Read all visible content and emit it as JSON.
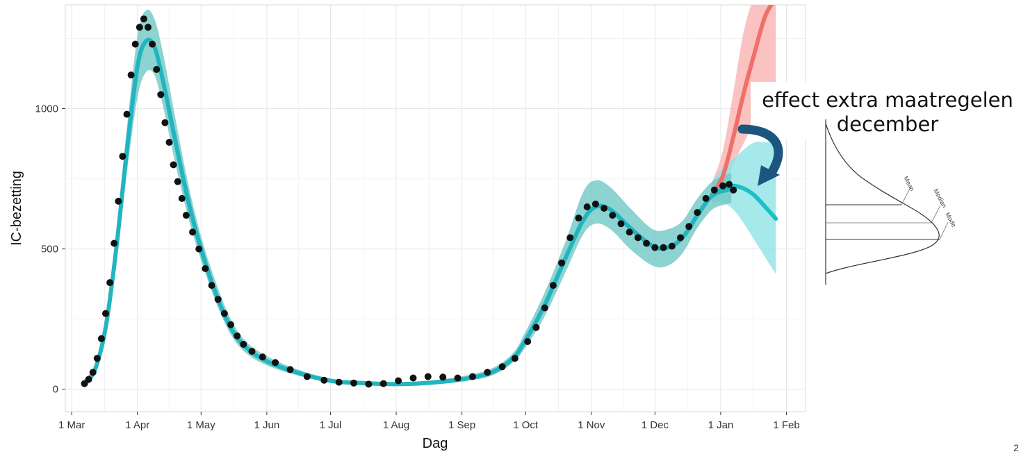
{
  "chart_data": {
    "type": "line",
    "title": "",
    "xlabel": "Dag",
    "ylabel": "IC-bezetting",
    "x_ticks": [
      "1 Mar",
      "1 Apr",
      "1 May",
      "1 Jun",
      "1 Jul",
      "1 Aug",
      "1 Sep",
      "1 Oct",
      "1 Nov",
      "1 Dec",
      "1 Jan",
      "1 Feb"
    ],
    "y_ticks": [
      0,
      500,
      1000
    ],
    "xlim": [
      "2020-02-27",
      "2021-02-10"
    ],
    "ylim": [
      -80,
      1370
    ],
    "grid": true,
    "legend": "none",
    "colors": {
      "observed": "#111111",
      "model": "#22b5bf",
      "model_band": "#6fc8c6",
      "scenario_without": "#f06f6a",
      "scenario_without_band": "#f9b9b6",
      "scenario_with": "#1fbfc8",
      "scenario_with_band": "#8fe3e6",
      "arrow": "#1b567f"
    },
    "series": [
      {
        "role": "model",
        "x": [
          "2020-03-07",
          "2020-03-12",
          "2020-03-17",
          "2020-03-22",
          "2020-03-27",
          "2020-04-01",
          "2020-04-05",
          "2020-04-09",
          "2020-04-13",
          "2020-04-19",
          "2020-04-25",
          "2020-05-01",
          "2020-05-08",
          "2020-05-15",
          "2020-05-22",
          "2020-06-01",
          "2020-06-15",
          "2020-07-01",
          "2020-07-15",
          "2020-08-01",
          "2020-08-15",
          "2020-09-01",
          "2020-09-15",
          "2020-09-25",
          "2020-10-01",
          "2020-10-10",
          "2020-10-20",
          "2020-10-28",
          "2020-11-03",
          "2020-11-10",
          "2020-11-20",
          "2020-11-30",
          "2020-12-07",
          "2020-12-14",
          "2020-12-21",
          "2020-12-28",
          "2021-01-04",
          "2021-01-06"
        ],
        "y": [
          20,
          70,
          220,
          500,
          850,
          1150,
          1240,
          1220,
          1100,
          880,
          670,
          500,
          340,
          220,
          150,
          100,
          60,
          30,
          22,
          18,
          22,
          35,
          60,
          110,
          175,
          300,
          470,
          600,
          650,
          640,
          570,
          510,
          505,
          540,
          620,
          690,
          710,
          715
        ],
        "lower": [
          5,
          55,
          190,
          440,
          770,
          1040,
          1130,
          1120,
          1010,
          800,
          610,
          460,
          310,
          195,
          130,
          85,
          50,
          24,
          15,
          12,
          17,
          28,
          48,
          95,
          150,
          260,
          420,
          550,
          590,
          570,
          495,
          440,
          440,
          485,
          575,
          640,
          660,
          665
        ],
        "upper": [
          35,
          90,
          260,
          560,
          930,
          1260,
          1350,
          1320,
          1200,
          960,
          730,
          545,
          380,
          250,
          172,
          118,
          72,
          38,
          30,
          26,
          30,
          46,
          74,
          128,
          205,
          345,
          530,
          700,
          745,
          720,
          640,
          570,
          570,
          600,
          680,
          740,
          765,
          770
        ]
      },
      {
        "role": "scenario_without",
        "x": [
          "2020-12-28",
          "2021-01-02",
          "2021-01-07",
          "2021-01-12",
          "2021-01-17",
          "2021-01-22",
          "2021-01-27"
        ],
        "y": [
          695,
          760,
          900,
          1060,
          1200,
          1330,
          1430
        ],
        "lower": [
          665,
          710,
          800,
          880,
          950,
          1000,
          1040
        ],
        "upper": [
          740,
          850,
          1060,
          1280,
          1450,
          1600,
          1700
        ]
      },
      {
        "role": "scenario_with",
        "x": [
          "2020-12-28",
          "2021-01-02",
          "2021-01-07",
          "2021-01-12",
          "2021-01-17",
          "2021-01-22",
          "2021-01-27"
        ],
        "y": [
          695,
          715,
          725,
          715,
          690,
          650,
          608
        ],
        "lower": [
          665,
          665,
          640,
          590,
          530,
          470,
          410
        ],
        "upper": [
          740,
          790,
          820,
          855,
          880,
          880,
          880
        ]
      },
      {
        "role": "observed",
        "x": [
          "2020-03-07",
          "2020-03-09",
          "2020-03-11",
          "2020-03-13",
          "2020-03-15",
          "2020-03-17",
          "2020-03-19",
          "2020-03-21",
          "2020-03-23",
          "2020-03-25",
          "2020-03-27",
          "2020-03-29",
          "2020-03-31",
          "2020-04-02",
          "2020-04-04",
          "2020-04-06",
          "2020-04-08",
          "2020-04-10",
          "2020-04-12",
          "2020-04-14",
          "2020-04-16",
          "2020-04-18",
          "2020-04-20",
          "2020-04-22",
          "2020-04-24",
          "2020-04-27",
          "2020-04-30",
          "2020-05-03",
          "2020-05-06",
          "2020-05-09",
          "2020-05-12",
          "2020-05-15",
          "2020-05-18",
          "2020-05-21",
          "2020-05-25",
          "2020-05-30",
          "2020-06-05",
          "2020-06-12",
          "2020-06-20",
          "2020-06-28",
          "2020-07-05",
          "2020-07-12",
          "2020-07-19",
          "2020-07-26",
          "2020-08-02",
          "2020-08-09",
          "2020-08-16",
          "2020-08-23",
          "2020-08-30",
          "2020-09-06",
          "2020-09-13",
          "2020-09-20",
          "2020-09-26",
          "2020-10-02",
          "2020-10-06",
          "2020-10-10",
          "2020-10-14",
          "2020-10-18",
          "2020-10-22",
          "2020-10-26",
          "2020-10-30",
          "2020-11-03",
          "2020-11-07",
          "2020-11-11",
          "2020-11-15",
          "2020-11-19",
          "2020-11-23",
          "2020-11-27",
          "2020-12-01",
          "2020-12-05",
          "2020-12-09",
          "2020-12-13",
          "2020-12-17",
          "2020-12-21",
          "2020-12-25",
          "2020-12-29",
          "2021-01-02",
          "2021-01-05",
          "2021-01-07"
        ],
        "y": [
          20,
          35,
          60,
          110,
          180,
          270,
          380,
          520,
          670,
          830,
          980,
          1120,
          1230,
          1290,
          1320,
          1290,
          1230,
          1140,
          1050,
          950,
          880,
          800,
          740,
          680,
          620,
          560,
          500,
          430,
          370,
          320,
          270,
          230,
          190,
          160,
          135,
          115,
          95,
          70,
          45,
          32,
          25,
          22,
          18,
          20,
          30,
          40,
          45,
          43,
          40,
          45,
          60,
          80,
          110,
          170,
          220,
          290,
          370,
          450,
          540,
          610,
          650,
          660,
          645,
          620,
          590,
          560,
          540,
          520,
          505,
          505,
          510,
          540,
          580,
          630,
          680,
          710,
          725,
          730,
          710
        ]
      }
    ],
    "annotation": {
      "line1": "effect extra maatregelen",
      "line2": "december"
    },
    "inset": {
      "labels": [
        "Mean",
        "Median",
        "Mode"
      ]
    },
    "page_number": "2"
  }
}
